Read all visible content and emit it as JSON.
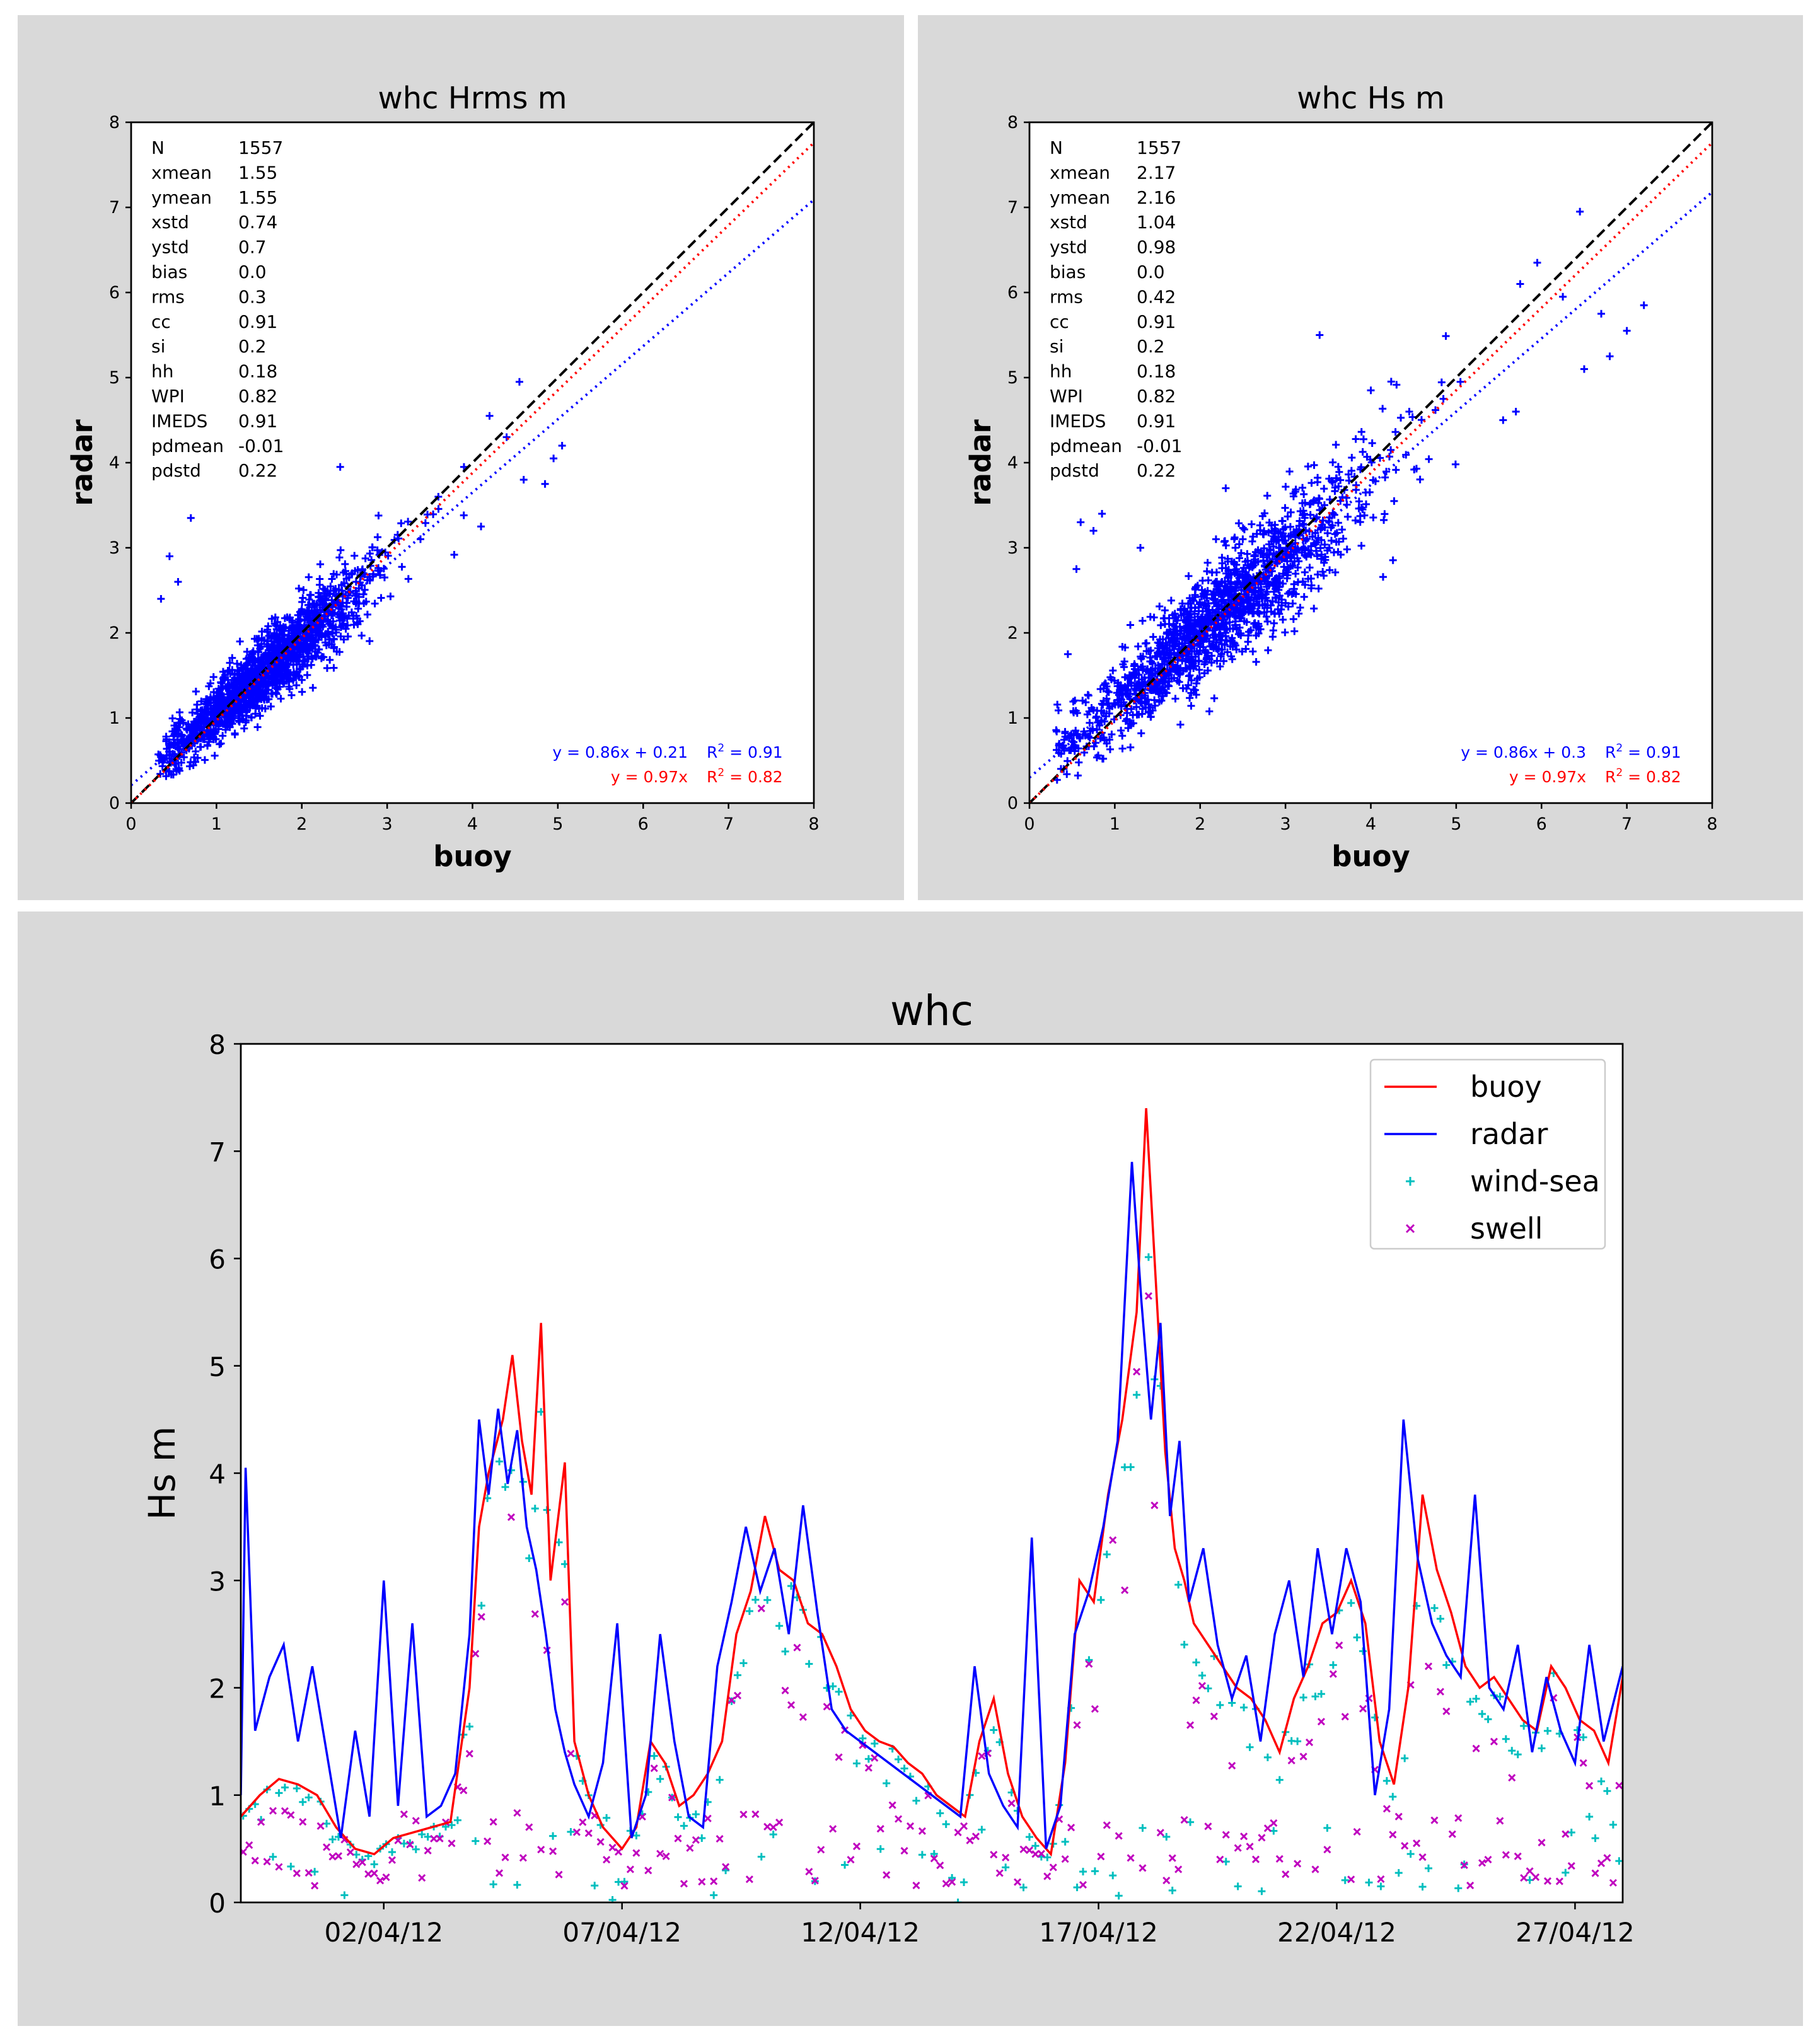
{
  "colors": {
    "panel_background": "#d9d9d9",
    "buoy": "#ff0000",
    "radar": "#0000ff",
    "wind_sea": "#00bfbf",
    "swell": "#bf00bf",
    "identity_line": "#000000"
  },
  "chart_data": [
    {
      "type": "scatter",
      "title": "whc Hrms m",
      "xlabel": "buoy",
      "ylabel": "radar",
      "xlim": [
        0,
        8
      ],
      "ylim": [
        0,
        8
      ],
      "xticks": [
        "0",
        "1",
        "2",
        "3",
        "4",
        "5",
        "6",
        "7",
        "8"
      ],
      "yticks": [
        "0",
        "1",
        "2",
        "3",
        "4",
        "5",
        "6",
        "7",
        "8"
      ],
      "marker": "+",
      "stats": [
        {
          "label": "N",
          "value": "1557"
        },
        {
          "label": "xmean",
          "value": "1.55"
        },
        {
          "label": "ymean",
          "value": "1.55"
        },
        {
          "label": "xstd",
          "value": "0.74"
        },
        {
          "label": "ystd",
          "value": "0.7"
        },
        {
          "label": "bias",
          "value": "0.0"
        },
        {
          "label": "rms",
          "value": "0.3"
        },
        {
          "label": "cc",
          "value": "0.91"
        },
        {
          "label": "si",
          "value": "0.2"
        },
        {
          "label": "hh",
          "value": "0.18"
        },
        {
          "label": "WPI",
          "value": "0.82"
        },
        {
          "label": "IMEDS",
          "value": "0.91"
        },
        {
          "label": "pdmean",
          "value": "-0.01"
        },
        {
          "label": "pdstd",
          "value": "0.22"
        }
      ],
      "lines": [
        {
          "name": "identity",
          "slope": 1.0,
          "intercept": 0.0,
          "style": "dashed",
          "color": "#000000"
        },
        {
          "name": "fit",
          "slope": 0.86,
          "intercept": 0.21,
          "style": "dotted",
          "color": "#0000ff"
        },
        {
          "name": "fit-origin",
          "slope": 0.97,
          "intercept": 0.0,
          "style": "dotted",
          "color": "#ff0000"
        }
      ],
      "fit_labels": {
        "blue_eq": "y = 0.86x + 0.21",
        "blue_r2_value": " = 0.91",
        "red_eq": "y = 0.97x",
        "red_r2_value": " = 0.82"
      },
      "r2_symbol": "R",
      "r2_exponent": "2",
      "cloud": {
        "x_mean": 1.55,
        "x_std": 0.74,
        "slope": 0.86,
        "intercept": 0.21,
        "noise_std": 0.3
      },
      "outliers": [
        [
          0.45,
          2.9
        ],
        [
          0.7,
          3.35
        ],
        [
          2.45,
          3.95
        ],
        [
          4.55,
          4.95
        ],
        [
          4.2,
          4.55
        ],
        [
          4.4,
          4.3
        ],
        [
          5.05,
          4.2
        ],
        [
          4.95,
          4.05
        ],
        [
          4.6,
          3.8
        ],
        [
          4.85,
          3.75
        ],
        [
          4.1,
          3.25
        ],
        [
          3.6,
          3.6
        ],
        [
          3.9,
          3.95
        ],
        [
          0.35,
          2.4
        ],
        [
          0.55,
          2.6
        ]
      ]
    },
    {
      "type": "scatter",
      "title": "whc Hs m",
      "xlabel": "buoy",
      "ylabel": "radar",
      "xlim": [
        0,
        8
      ],
      "ylim": [
        0,
        8
      ],
      "xticks": [
        "0",
        "1",
        "2",
        "3",
        "4",
        "5",
        "6",
        "7",
        "8"
      ],
      "yticks": [
        "0",
        "1",
        "2",
        "3",
        "4",
        "5",
        "6",
        "7",
        "8"
      ],
      "marker": "+",
      "stats": [
        {
          "label": "N",
          "value": "1557"
        },
        {
          "label": "xmean",
          "value": "2.17"
        },
        {
          "label": "ymean",
          "value": "2.16"
        },
        {
          "label": "xstd",
          "value": "1.04"
        },
        {
          "label": "ystd",
          "value": "0.98"
        },
        {
          "label": "bias",
          "value": "0.0"
        },
        {
          "label": "rms",
          "value": "0.42"
        },
        {
          "label": "cc",
          "value": "0.91"
        },
        {
          "label": "si",
          "value": "0.2"
        },
        {
          "label": "hh",
          "value": "0.18"
        },
        {
          "label": "WPI",
          "value": "0.82"
        },
        {
          "label": "IMEDS",
          "value": "0.91"
        },
        {
          "label": "pdmean",
          "value": "-0.01"
        },
        {
          "label": "pdstd",
          "value": "0.22"
        }
      ],
      "lines": [
        {
          "name": "identity",
          "slope": 1.0,
          "intercept": 0.0,
          "style": "dashed",
          "color": "#000000"
        },
        {
          "name": "fit",
          "slope": 0.86,
          "intercept": 0.3,
          "style": "dotted",
          "color": "#0000ff"
        },
        {
          "name": "fit-origin",
          "slope": 0.97,
          "intercept": 0.0,
          "style": "dotted",
          "color": "#ff0000"
        }
      ],
      "fit_labels": {
        "blue_eq": "y = 0.86x + 0.3",
        "blue_r2_value": " = 0.91",
        "red_eq": "y = 0.97x",
        "red_r2_value": " = 0.82"
      },
      "r2_symbol": "R",
      "r2_exponent": "2",
      "cloud": {
        "x_mean": 2.17,
        "x_std": 1.04,
        "slope": 0.86,
        "intercept": 0.3,
        "noise_std": 0.42
      },
      "outliers": [
        [
          6.45,
          6.95
        ],
        [
          5.95,
          6.35
        ],
        [
          5.75,
          6.1
        ],
        [
          6.25,
          5.95
        ],
        [
          7.2,
          5.85
        ],
        [
          6.7,
          5.75
        ],
        [
          7.0,
          5.55
        ],
        [
          6.8,
          5.25
        ],
        [
          6.5,
          5.1
        ],
        [
          3.4,
          5.5
        ],
        [
          4.0,
          4.85
        ],
        [
          5.7,
          4.6
        ],
        [
          5.55,
          4.5
        ],
        [
          0.6,
          3.3
        ],
        [
          0.75,
          3.2
        ],
        [
          1.3,
          3.0
        ],
        [
          0.55,
          2.75
        ],
        [
          0.45,
          1.75
        ],
        [
          0.85,
          3.4
        ],
        [
          2.3,
          3.7
        ],
        [
          4.45,
          4.6
        ],
        [
          4.85,
          4.75
        ],
        [
          5.05,
          4.95
        ]
      ]
    },
    {
      "type": "line",
      "title": "whc",
      "xlabel": "",
      "ylabel": "Hs m",
      "ylim": [
        0,
        8
      ],
      "x_range_days": [
        0,
        29
      ],
      "yticks": [
        "0",
        "1",
        "2",
        "3",
        "4",
        "5",
        "6",
        "7",
        "8"
      ],
      "xticks": [
        {
          "label": "02/04/12",
          "day": 3
        },
        {
          "label": "07/04/12",
          "day": 8
        },
        {
          "label": "12/04/12",
          "day": 13
        },
        {
          "label": "17/04/12",
          "day": 18
        },
        {
          "label": "22/04/12",
          "day": 23
        },
        {
          "label": "27/04/12",
          "day": 28
        }
      ],
      "legend_position": "top-right",
      "legend": [
        {
          "name": "buoy",
          "kind": "line",
          "color": "#ff0000"
        },
        {
          "name": "radar",
          "kind": "line",
          "color": "#0000ff"
        },
        {
          "name": "wind-sea",
          "kind": "plus",
          "color": "#00bfbf"
        },
        {
          "name": "swell",
          "kind": "cross",
          "color": "#bf00bf"
        }
      ],
      "series": [
        {
          "name": "buoy",
          "x": [
            0,
            0.4,
            0.8,
            1.2,
            1.6,
            2.0,
            2.4,
            2.8,
            3.2,
            3.6,
            4.0,
            4.4,
            4.8,
            5.0,
            5.2,
            5.5,
            5.7,
            5.9,
            6.1,
            6.3,
            6.5,
            6.8,
            7.0,
            7.3,
            7.6,
            8.0,
            8.3,
            8.6,
            8.9,
            9.2,
            9.5,
            9.8,
            10.1,
            10.4,
            10.7,
            11.0,
            11.3,
            11.6,
            11.9,
            12.2,
            12.5,
            12.8,
            13.1,
            13.4,
            13.7,
            14.0,
            14.3,
            14.6,
            14.9,
            15.2,
            15.5,
            15.8,
            16.1,
            16.4,
            16.7,
            17.0,
            17.3,
            17.6,
            17.9,
            18.2,
            18.5,
            18.8,
            19.0,
            19.2,
            19.4,
            19.6,
            19.8,
            20.0,
            20.3,
            20.6,
            20.9,
            21.2,
            21.5,
            21.8,
            22.1,
            22.4,
            22.7,
            23.0,
            23.3,
            23.6,
            23.9,
            24.2,
            24.5,
            24.8,
            25.1,
            25.4,
            25.7,
            26.0,
            26.3,
            26.6,
            26.9,
            27.2,
            27.5,
            27.8,
            28.1,
            28.4,
            28.7,
            29.0
          ],
          "values": [
            0.8,
            1.0,
            1.15,
            1.1,
            1.0,
            0.7,
            0.5,
            0.45,
            0.6,
            0.65,
            0.7,
            0.75,
            2.0,
            3.5,
            4.0,
            4.5,
            5.1,
            4.3,
            3.8,
            5.4,
            3.0,
            4.1,
            1.5,
            1.0,
            0.7,
            0.5,
            0.7,
            1.5,
            1.3,
            0.9,
            1.0,
            1.2,
            1.5,
            2.5,
            2.9,
            3.6,
            3.1,
            3.0,
            2.6,
            2.5,
            2.2,
            1.8,
            1.6,
            1.5,
            1.45,
            1.3,
            1.2,
            1.0,
            0.9,
            0.8,
            1.5,
            1.9,
            1.2,
            0.8,
            0.6,
            0.45,
            1.3,
            3.0,
            2.8,
            3.8,
            4.5,
            5.5,
            7.4,
            5.8,
            4.2,
            3.3,
            3.0,
            2.6,
            2.4,
            2.2,
            2.0,
            1.9,
            1.7,
            1.4,
            1.9,
            2.2,
            2.6,
            2.7,
            3.0,
            2.6,
            1.5,
            1.1,
            2.0,
            3.8,
            3.1,
            2.7,
            2.2,
            2.0,
            2.1,
            1.9,
            1.7,
            1.6,
            2.2,
            2.0,
            1.7,
            1.6,
            1.3,
            2.1
          ]
        },
        {
          "name": "radar",
          "x": [
            0,
            0.1,
            0.3,
            0.6,
            0.9,
            1.2,
            1.5,
            1.8,
            2.1,
            2.4,
            2.7,
            3.0,
            3.3,
            3.6,
            3.9,
            4.2,
            4.5,
            4.8,
            5.0,
            5.2,
            5.4,
            5.6,
            5.8,
            6.0,
            6.2,
            6.4,
            6.6,
            6.8,
            7.0,
            7.3,
            7.6,
            7.9,
            8.2,
            8.5,
            8.8,
            9.1,
            9.4,
            9.7,
            10.0,
            10.3,
            10.6,
            10.9,
            11.2,
            11.5,
            11.8,
            12.1,
            12.4,
            12.7,
            13.0,
            13.3,
            13.6,
            13.9,
            14.2,
            14.5,
            14.8,
            15.1,
            15.4,
            15.7,
            16.0,
            16.3,
            16.6,
            16.9,
            17.2,
            17.5,
            17.8,
            18.1,
            18.4,
            18.7,
            18.9,
            19.1,
            19.3,
            19.5,
            19.7,
            19.9,
            20.2,
            20.5,
            20.8,
            21.1,
            21.4,
            21.7,
            22.0,
            22.3,
            22.6,
            22.9,
            23.2,
            23.5,
            23.8,
            24.1,
            24.4,
            24.7,
            25.0,
            25.3,
            25.6,
            25.9,
            26.2,
            26.5,
            26.8,
            27.1,
            27.4,
            27.7,
            28.0,
            28.3,
            28.6,
            29.0
          ],
          "values": [
            1.0,
            4.05,
            1.6,
            2.1,
            2.4,
            1.5,
            2.2,
            1.4,
            0.6,
            1.6,
            0.8,
            3.0,
            0.9,
            2.6,
            0.8,
            0.9,
            1.2,
            2.5,
            4.5,
            3.8,
            4.6,
            3.9,
            4.4,
            3.5,
            3.1,
            2.5,
            1.8,
            1.4,
            1.1,
            0.8,
            1.3,
            2.6,
            0.6,
            1.0,
            2.5,
            1.5,
            0.8,
            0.7,
            2.2,
            2.8,
            3.5,
            2.9,
            3.3,
            2.5,
            3.7,
            2.7,
            1.8,
            1.6,
            1.5,
            1.4,
            1.3,
            1.2,
            1.1,
            1.0,
            0.9,
            0.8,
            2.2,
            1.2,
            0.9,
            0.7,
            3.4,
            0.5,
            0.9,
            2.5,
            2.9,
            3.5,
            4.3,
            6.9,
            5.6,
            4.5,
            5.4,
            3.6,
            4.3,
            2.8,
            3.3,
            2.4,
            1.9,
            2.3,
            1.5,
            2.5,
            3.0,
            2.1,
            3.3,
            2.5,
            3.3,
            2.8,
            1.0,
            1.8,
            4.5,
            3.2,
            2.6,
            2.3,
            2.1,
            3.8,
            2.0,
            1.8,
            2.4,
            1.4,
            2.1,
            1.6,
            1.3,
            2.4,
            1.5,
            2.2
          ]
        }
      ],
      "scatter_windsea_seed": 7,
      "scatter_swell_seed": 13
    }
  ]
}
